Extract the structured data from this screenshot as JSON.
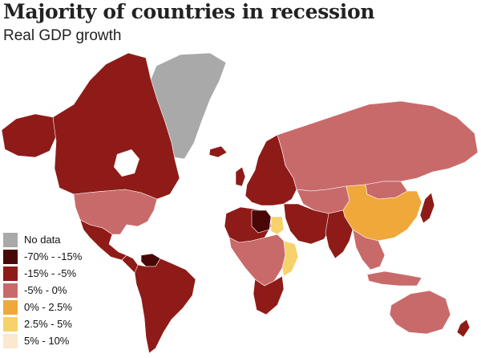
{
  "header": {
    "title": "Majority of countries in recession",
    "subtitle": "Real GDP growth"
  },
  "legend": {
    "items": [
      {
        "label": "No data",
        "color": "#a9a9a9"
      },
      {
        "label": "-70% - -15%",
        "color": "#4a0707"
      },
      {
        "label": "-15% - -5%",
        "color": "#8e1b17"
      },
      {
        "label": "-5% - 0%",
        "color": "#c96a6a"
      },
      {
        "label": "0% - 2.5%",
        "color": "#f0a83a"
      },
      {
        "label": "2.5% - 5%",
        "color": "#f7d26a"
      },
      {
        "label": "5% - 10%",
        "color": "#fbe8cf"
      }
    ]
  },
  "map": {
    "projection": "world",
    "regions": [
      {
        "name": "Greenland",
        "category": "No data"
      },
      {
        "name": "Canada",
        "category": "-15% - -5%"
      },
      {
        "name": "Alaska",
        "category": "-15% - -5%"
      },
      {
        "name": "United States",
        "category": "-5% - 0%"
      },
      {
        "name": "Mexico",
        "category": "-15% - -5%"
      },
      {
        "name": "Central America",
        "category": "-15% - -5%"
      },
      {
        "name": "Venezuela",
        "category": "-70% - -15%"
      },
      {
        "name": "South America",
        "category": "-15% - -5%"
      },
      {
        "name": "Europe",
        "category": "-15% - -5%"
      },
      {
        "name": "Russia",
        "category": "-5% - 0%"
      },
      {
        "name": "Central Asia",
        "category": "-5% - 0%"
      },
      {
        "name": "Libya",
        "category": "-70% - -15%"
      },
      {
        "name": "Egypt",
        "category": "2.5% - 5%"
      },
      {
        "name": "North Africa",
        "category": "-15% - -5%"
      },
      {
        "name": "Sub-Saharan Africa",
        "category": "-5% - 0%"
      },
      {
        "name": "East Africa",
        "category": "2.5% - 5%"
      },
      {
        "name": "Southern Africa",
        "category": "-15% - -5%"
      },
      {
        "name": "Middle East",
        "category": "-15% - -5%"
      },
      {
        "name": "India",
        "category": "-15% - -5%"
      },
      {
        "name": "China",
        "category": "0% - 2.5%"
      },
      {
        "name": "Mongolia",
        "category": "-5% - 0%"
      },
      {
        "name": "Southeast Asia",
        "category": "-5% - 0%"
      },
      {
        "name": "Japan",
        "category": "-15% - -5%"
      },
      {
        "name": "Indonesia",
        "category": "-5% - 0%"
      },
      {
        "name": "Australia",
        "category": "-5% - 0%"
      },
      {
        "name": "New Zealand",
        "category": "-15% - -5%"
      },
      {
        "name": "UK",
        "category": "-15% - -5%"
      },
      {
        "name": "Iceland",
        "category": "-15% - -5%"
      }
    ]
  }
}
